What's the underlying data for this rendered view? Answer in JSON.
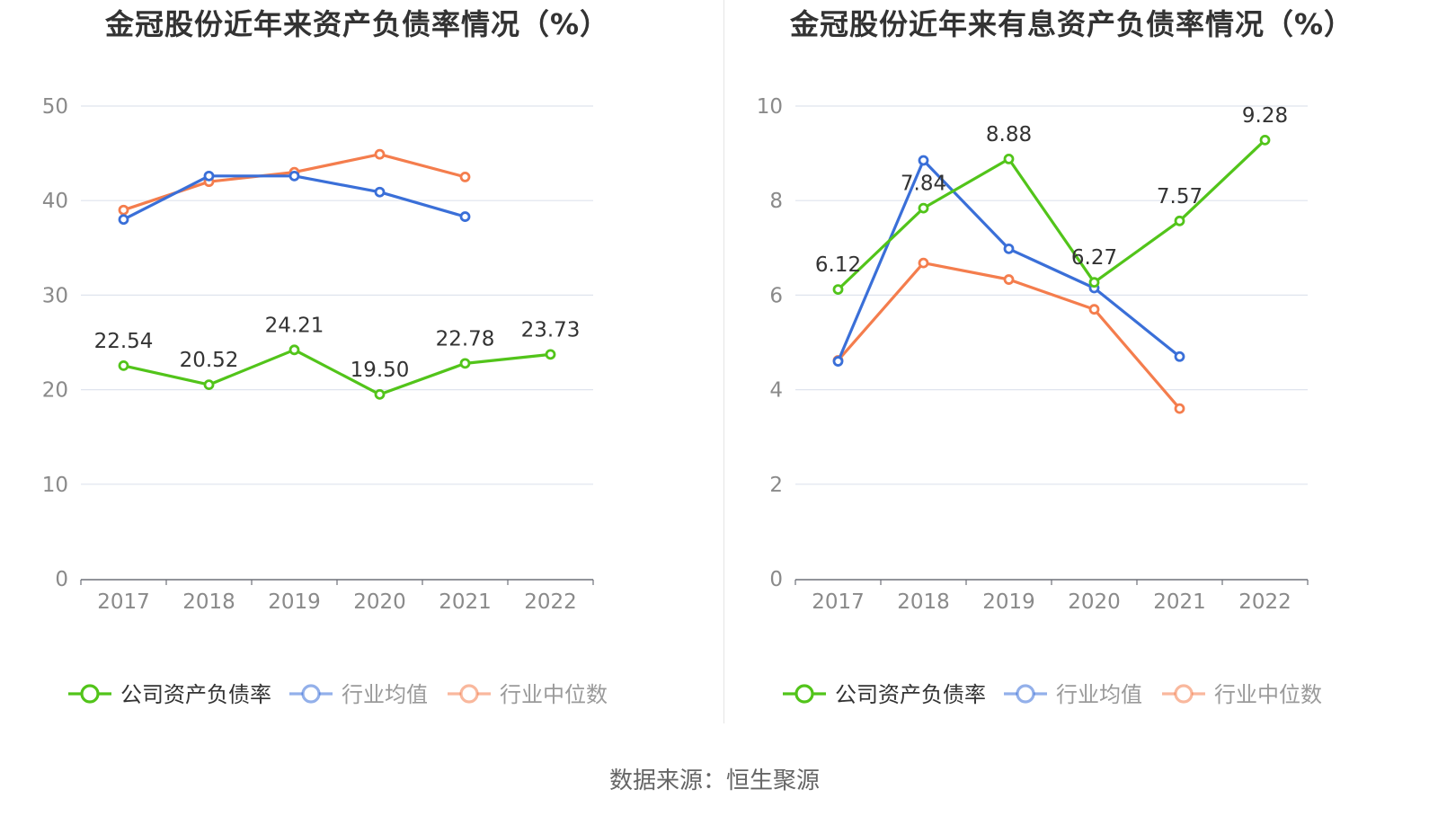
{
  "chart_data": [
    {
      "type": "line",
      "title": "金冠股份近年来资产负债率情况（%）",
      "categories": [
        "2017",
        "2018",
        "2019",
        "2020",
        "2021",
        "2022"
      ],
      "ylim": [
        0,
        50
      ],
      "yticks": [
        0,
        10,
        20,
        30,
        40,
        50
      ],
      "grid": true,
      "legend_position": "bottom",
      "series": [
        {
          "name": "公司资产负债率",
          "color": "#52c41a",
          "values": [
            22.54,
            20.52,
            24.21,
            19.5,
            22.78,
            23.73
          ],
          "labels": [
            "22.54",
            "20.52",
            "24.21",
            "19.50",
            "22.78",
            "23.73"
          ]
        },
        {
          "name": "行业均值",
          "color": "#3a6fd8",
          "values": [
            38.0,
            42.6,
            42.6,
            40.9,
            38.3,
            null
          ]
        },
        {
          "name": "行业中位数",
          "color": "#f47d4d",
          "values": [
            39.0,
            42.0,
            43.0,
            44.9,
            42.5,
            null
          ]
        }
      ]
    },
    {
      "type": "line",
      "title": "金冠股份近年来有息资产负债率情况（%）",
      "categories": [
        "2017",
        "2018",
        "2019",
        "2020",
        "2021",
        "2022"
      ],
      "ylim": [
        0,
        10
      ],
      "yticks": [
        0,
        2,
        4,
        6,
        8,
        10
      ],
      "grid": true,
      "legend_position": "bottom",
      "series": [
        {
          "name": "公司资产负债率",
          "color": "#52c41a",
          "values": [
            6.12,
            7.84,
            8.88,
            6.27,
            7.57,
            9.28
          ],
          "labels": [
            "6.12",
            "7.84",
            "8.88",
            "6.27",
            "7.57",
            "9.28"
          ]
        },
        {
          "name": "行业均值",
          "color": "#3a6fd8",
          "values": [
            4.6,
            8.85,
            6.98,
            6.15,
            4.7,
            null
          ]
        },
        {
          "name": "行业中位数",
          "color": "#f47d4d",
          "values": [
            4.62,
            6.68,
            6.33,
            5.7,
            3.6,
            null
          ]
        }
      ]
    }
  ],
  "source_text": "数据来源：恒生聚源"
}
